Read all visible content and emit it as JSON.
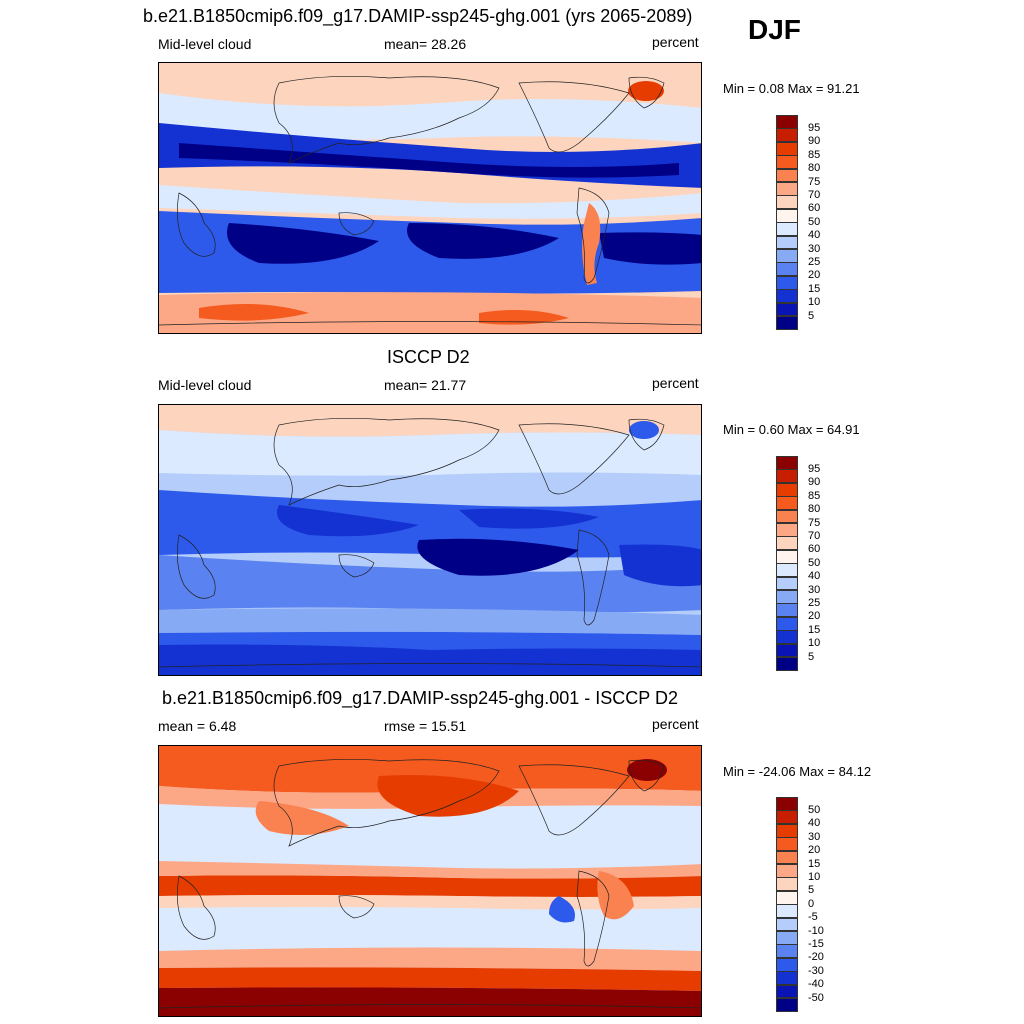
{
  "season": "DJF",
  "panels": [
    {
      "id": "model",
      "title": "b.e21.B1850cmip6.f09_g17.DAMIP-ssp245-ghg.001 (yrs 2065-2089)",
      "left_label": "Mid-level cloud",
      "center_label": "mean=  28.26",
      "units": "percent",
      "minmax": "Min =   0.08 Max =  91.21",
      "palette": "sequential"
    },
    {
      "id": "obs",
      "title": "ISCCP D2",
      "left_label": "Mid-level cloud",
      "center_label": "mean=  21.77",
      "units": "percent",
      "minmax": "Min =   0.60 Max =  64.91",
      "palette": "sequential"
    },
    {
      "id": "diff",
      "title": "b.e21.B1850cmip6.f09_g17.DAMIP-ssp245-ghg.001 - ISCCP D2",
      "left_label": "mean =   6.48",
      "center_label": "rmse =  15.51",
      "units": "percent",
      "minmax": "Min = -24.06 Max =  84.12",
      "palette": "diverging"
    }
  ],
  "chart_data": {
    "type": "heatmap",
    "colorbars": {
      "sequential": {
        "labels": [
          "95",
          "90",
          "85",
          "80",
          "75",
          "70",
          "60",
          "50",
          "40",
          "30",
          "25",
          "20",
          "15",
          "10",
          "5"
        ],
        "colors": [
          "#8b0000",
          "#c81e00",
          "#e63c00",
          "#f55a1e",
          "#fa8250",
          "#fca887",
          "#fdd4bd",
          "#fff5ee",
          "#dceaff",
          "#b4cdfa",
          "#87aaf5",
          "#5a82f0",
          "#2d5aeb",
          "#1432d2",
          "#0a14b4",
          "#000087"
        ]
      },
      "diverging": {
        "labels": [
          "50",
          "40",
          "30",
          "20",
          "15",
          "10",
          "5",
          "0",
          "-5",
          "-10",
          "-15",
          "-20",
          "-30",
          "-40",
          "-50"
        ],
        "colors": [
          "#8b0000",
          "#c81e00",
          "#e63c00",
          "#f55a1e",
          "#fa8250",
          "#fca887",
          "#fdd4bd",
          "#fff5ee",
          "#dceaff",
          "#b4cdfa",
          "#87aaf5",
          "#5a82f0",
          "#2d5aeb",
          "#1432d2",
          "#0a14b4",
          "#000087"
        ]
      }
    }
  }
}
